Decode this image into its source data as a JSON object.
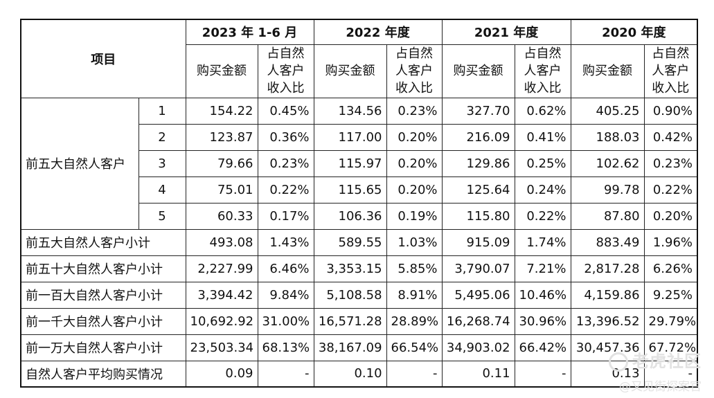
{
  "table": {
    "item_header": "项目",
    "periods": [
      "2023 年 1-6 月",
      "2022 年度",
      "2021 年度",
      "2020 年度"
    ],
    "amount_header": "购买金额",
    "ratio_header": [
      "占自然",
      "人客户",
      "收入比"
    ],
    "top5_group_label": "前五大自然人客户",
    "top5_rows": [
      {
        "rank": "1",
        "values": [
          "154.22",
          "0.45%",
          "134.56",
          "0.23%",
          "327.70",
          "0.62%",
          "405.25",
          "0.90%"
        ]
      },
      {
        "rank": "2",
        "values": [
          "123.87",
          "0.36%",
          "117.00",
          "0.20%",
          "216.09",
          "0.41%",
          "188.03",
          "0.42%"
        ]
      },
      {
        "rank": "3",
        "values": [
          "79.66",
          "0.23%",
          "115.97",
          "0.20%",
          "129.86",
          "0.25%",
          "102.62",
          "0.23%"
        ]
      },
      {
        "rank": "4",
        "values": [
          "75.01",
          "0.22%",
          "115.65",
          "0.20%",
          "125.64",
          "0.24%",
          "99.78",
          "0.22%"
        ]
      },
      {
        "rank": "5",
        "values": [
          "60.33",
          "0.17%",
          "106.36",
          "0.19%",
          "115.80",
          "0.22%",
          "87.80",
          "0.20%"
        ]
      }
    ],
    "subtotal_rows": [
      {
        "label": "前五大自然人客户小计",
        "values": [
          "493.08",
          "1.43%",
          "589.55",
          "1.03%",
          "915.09",
          "1.74%",
          "883.49",
          "1.96%"
        ]
      },
      {
        "label": "前五十大自然人客户小计",
        "values": [
          "2,227.99",
          "6.46%",
          "3,353.15",
          "5.85%",
          "3,790.07",
          "7.21%",
          "2,817.28",
          "6.26%"
        ]
      },
      {
        "label": "前一百大自然人客户小计",
        "values": [
          "3,394.42",
          "9.84%",
          "5,108.58",
          "8.91%",
          "5,495.06",
          "10.46%",
          "4,159.86",
          "9.25%"
        ]
      },
      {
        "label": "前一千大自然人客户小计",
        "values": [
          "10,692.92",
          "31.00%",
          "16,571.28",
          "28.89%",
          "16,268.74",
          "30.96%",
          "13,396.52",
          "29.79%"
        ]
      },
      {
        "label": "前一万大自然人客户小计",
        "values": [
          "23,503.34",
          "68.13%",
          "38,167.09",
          "66.54%",
          "34,903.02",
          "66.42%",
          "30,457.36",
          "67.72%"
        ]
      },
      {
        "label": "自然人客户平均购买情况",
        "values": [
          "0.09",
          "-",
          "0.10",
          "-",
          "0.11",
          "-",
          "0.13",
          "-"
        ]
      }
    ]
  },
  "watermark": {
    "line1": "老虎社区",
    "line2": "@又见街探案官"
  }
}
